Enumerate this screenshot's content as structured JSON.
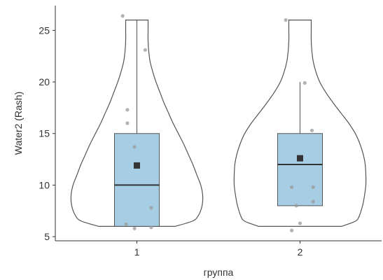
{
  "chart_data": {
    "type": "violin+box",
    "xlabel": "группа",
    "ylabel": "Water2 (Rash)",
    "ylim": [
      4.6,
      27.4
    ],
    "y_ticks": [
      5,
      10,
      15,
      20,
      25
    ],
    "grid": false,
    "colors": {
      "box_fill": "#a6cde4",
      "outline": "#555555",
      "mean_marker": "#333333",
      "points": "#999999"
    },
    "groups": [
      {
        "category": "1",
        "box": {
          "q1": 6.0,
          "median": 10.0,
          "q3": 15.0,
          "whisker_low": 6.0,
          "whisker_high": 26.0
        },
        "mean": 11.9,
        "violin": {
          "y": [
            6,
            6.5,
            7,
            8,
            9,
            10,
            11,
            12,
            13,
            14,
            15,
            16,
            17,
            18,
            19,
            20,
            21,
            22,
            23,
            24,
            25,
            26
          ],
          "width": [
            0.58,
            0.84,
            0.93,
            0.99,
            1.0,
            0.97,
            0.91,
            0.85,
            0.78,
            0.71,
            0.63,
            0.55,
            0.48,
            0.41,
            0.35,
            0.29,
            0.24,
            0.2,
            0.18,
            0.17,
            0.17,
            0.17
          ]
        },
        "points": [
          {
            "x": -0.12,
            "y": 26.4
          },
          {
            "x": 0.07,
            "y": 23.1
          },
          {
            "x": -0.08,
            "y": 17.3
          },
          {
            "x": -0.08,
            "y": 16.0
          },
          {
            "x": -0.02,
            "y": 13.7
          },
          {
            "x": 0.12,
            "y": 7.8
          },
          {
            "x": -0.09,
            "y": 6.2
          },
          {
            "x": -0.02,
            "y": 5.8
          },
          {
            "x": 0.12,
            "y": 5.9
          }
        ]
      },
      {
        "category": "2",
        "box": {
          "q1": 8.0,
          "median": 12.0,
          "q3": 15.0,
          "whisker_low": 8.0,
          "whisker_high": 20.0
        },
        "mean": 12.6,
        "violin": {
          "y": [
            6,
            6.5,
            7,
            8,
            9,
            10,
            11,
            12,
            13,
            14,
            15,
            16,
            17,
            18,
            19,
            20,
            21,
            22,
            23,
            24,
            25,
            26
          ],
          "width": [
            0.63,
            0.84,
            0.9,
            0.95,
            0.98,
            1.0,
            1.0,
            0.99,
            0.96,
            0.91,
            0.84,
            0.74,
            0.62,
            0.5,
            0.39,
            0.3,
            0.24,
            0.2,
            0.18,
            0.17,
            0.17,
            0.17
          ]
        },
        "points": [
          {
            "x": -0.12,
            "y": 26.0
          },
          {
            "x": 0.04,
            "y": 19.9
          },
          {
            "x": 0.1,
            "y": 15.3
          },
          {
            "x": 0.0,
            "y": 12.6
          },
          {
            "x": -0.07,
            "y": 9.8
          },
          {
            "x": 0.11,
            "y": 9.8
          },
          {
            "x": 0.11,
            "y": 8.4
          },
          {
            "x": -0.03,
            "y": 8.0
          },
          {
            "x": 0.0,
            "y": 6.3
          },
          {
            "x": -0.07,
            "y": 5.6
          }
        ]
      }
    ]
  }
}
